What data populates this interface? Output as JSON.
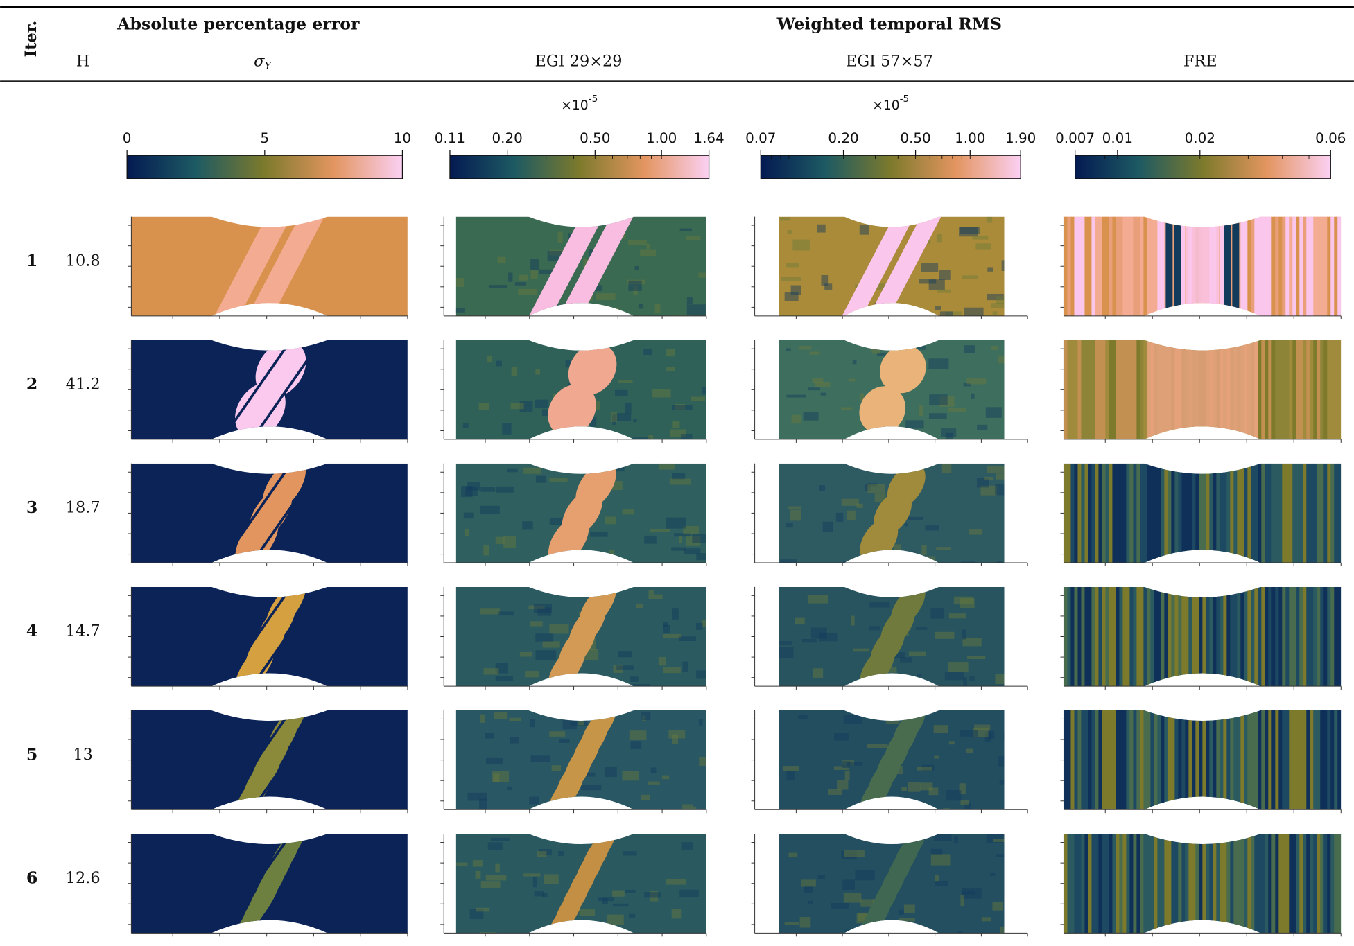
{
  "header": {
    "iter": "Iter.",
    "group1": "Absolute percentage error",
    "group2": "Weighted temporal RMS",
    "columns": {
      "h": "H",
      "sigma": {
        "symbol": "σ",
        "subscript": "Y"
      },
      "egi29": "EGI 29×29",
      "egi57": "EGI 57×57",
      "fre": "FRE"
    }
  },
  "colorbars": [
    {
      "scale": "linear",
      "lim": [
        0,
        10
      ],
      "ticks": [
        0,
        5,
        10
      ]
    },
    {
      "scale": "log",
      "lim": [
        0.11,
        1.64
      ],
      "multiplier": {
        "base": "×10",
        "exponent": "-5"
      },
      "ticks": [
        0.11,
        {
          "value": 0.2,
          "label": "0.20"
        },
        {
          "value": 0.5,
          "label": "0.50"
        },
        {
          "value": 1,
          "label": "1.00"
        },
        1.64
      ]
    },
    {
      "scale": "log",
      "lim": [
        0.07,
        1.9
      ],
      "multiplier": {
        "base": "×10",
        "exponent": "-5"
      },
      "ticks": [
        0.07,
        {
          "value": 0.2,
          "label": "0.20"
        },
        {
          "value": 0.5,
          "label": "0.50"
        },
        {
          "value": 1,
          "label": "1.00"
        },
        {
          "value": 1.9,
          "label": "1.90"
        }
      ]
    },
    {
      "scale": "log",
      "lim": [
        0.007,
        0.06
      ],
      "ticks": [
        0.007,
        0.01,
        0.02,
        0.06
      ]
    }
  ],
  "rows": [
    {
      "iter": "1",
      "h": 10.8
    },
    {
      "iter": "2",
      "h": 41.2
    },
    {
      "iter": "3",
      "h": 18.7
    },
    {
      "iter": "4",
      "h": 14.7
    },
    {
      "iter": "5",
      "h": 13
    },
    {
      "iter": "6",
      "h": 12.6
    }
  ]
}
